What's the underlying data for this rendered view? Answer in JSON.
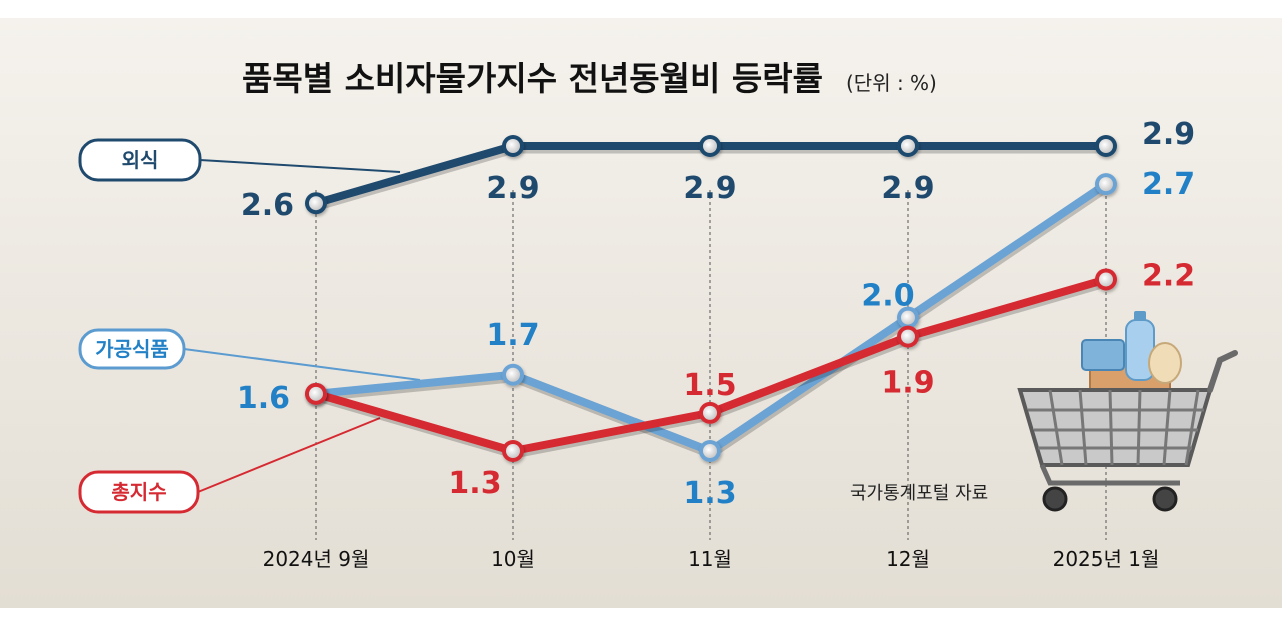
{
  "chart_data": {
    "type": "line",
    "title": "품목별 소비자물가지수 전년동월비 등락률",
    "unit": "(단위 : %)",
    "categories": [
      "2024년 9월",
      "10월",
      "11월",
      "12월",
      "2025년 1월"
    ],
    "ylim": [
      1.0,
      3.0
    ],
    "grid": false,
    "series": [
      {
        "name": "외식",
        "values": [
          2.6,
          2.9,
          2.9,
          2.9,
          2.9
        ],
        "labels": [
          "2.6",
          "2.9",
          "2.9",
          "2.9",
          "2.9"
        ],
        "color": "#1f4a6e"
      },
      {
        "name": "가공식품",
        "values": [
          1.6,
          1.7,
          1.3,
          2.0,
          2.7
        ],
        "labels": [
          "1.6",
          "1.7",
          "1.3",
          "2.0",
          "2.7"
        ],
        "color": "#6aa3d4",
        "label_color": "#2281c6"
      },
      {
        "name": "총지수",
        "values": [
          1.6,
          1.3,
          1.5,
          1.9,
          2.2
        ],
        "labels": [
          "",
          "1.3",
          "1.5",
          "1.9",
          "2.2"
        ],
        "color": "#d62a32"
      }
    ],
    "source": "국가통계포털 자료"
  },
  "colors": {
    "background_gradient_top": "#f4f1ec",
    "background_gradient_bottom": "#e4dfd5",
    "dash_line": "#555555"
  },
  "illustration": "shopping-cart-icon"
}
